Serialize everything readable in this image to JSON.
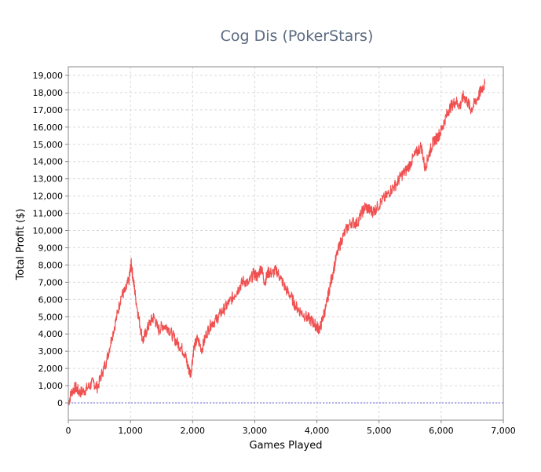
{
  "chart_data": {
    "type": "line",
    "title": "Cog Dis (PokerStars)",
    "xlabel": "Games Played",
    "ylabel": "Total Profit ($)",
    "xlim": [
      0,
      7000
    ],
    "ylim": [
      -1000,
      19500
    ],
    "x_ticks": [
      0,
      1000,
      2000,
      3000,
      4000,
      5000,
      6000,
      7000
    ],
    "x_tick_labels": [
      "0",
      "1,000",
      "2,000",
      "3,000",
      "4,000",
      "5,000",
      "6,000",
      "7,000"
    ],
    "y_ticks": [
      0,
      1000,
      2000,
      3000,
      4000,
      5000,
      6000,
      7000,
      8000,
      9000,
      10000,
      11000,
      12000,
      13000,
      14000,
      15000,
      16000,
      17000,
      18000,
      19000
    ],
    "y_tick_labels": [
      "0",
      "1,000",
      "2,000",
      "3,000",
      "4,000",
      "5,000",
      "6,000",
      "7,000",
      "8,000",
      "9,000",
      "10,000",
      "11,000",
      "12,000",
      "13,000",
      "14,000",
      "15,000",
      "16,000",
      "17,000",
      "18,000",
      "19,000"
    ],
    "grid": true,
    "legend": "none",
    "zero_line": true,
    "series": [
      {
        "color": "#f05050",
        "x": [
          0,
          60,
          120,
          180,
          250,
          320,
          400,
          470,
          550,
          620,
          700,
          780,
          850,
          920,
          980,
          1010,
          1040,
          1080,
          1140,
          1200,
          1260,
          1320,
          1380,
          1450,
          1520,
          1600,
          1680,
          1750,
          1820,
          1880,
          1930,
          1970,
          2020,
          2080,
          2150,
          2220,
          2300,
          2380,
          2450,
          2520,
          2600,
          2680,
          2750,
          2820,
          2900,
          2980,
          3050,
          3100,
          3160,
          3220,
          3280,
          3350,
          3420,
          3500,
          3580,
          3660,
          3740,
          3820,
          3900,
          3960,
          4000,
          4050,
          4100,
          4150,
          4200,
          4260,
          4330,
          4400,
          4480,
          4560,
          4640,
          4720,
          4780,
          4840,
          4900,
          4960,
          5040,
          5120,
          5200,
          5280,
          5360,
          5440,
          5520,
          5600,
          5680,
          5740,
          5800,
          5840,
          5880,
          5940,
          6000,
          6060,
          6120,
          6180,
          6240,
          6300,
          6360,
          6420,
          6480,
          6540,
          6600,
          6650,
          6700
        ],
        "values": [
          0,
          700,
          900,
          600,
          700,
          900,
          1200,
          900,
          1800,
          2500,
          3800,
          5000,
          6200,
          6500,
          7200,
          8100,
          7300,
          6200,
          4800,
          3600,
          4200,
          4700,
          5000,
          4200,
          4500,
          4400,
          3900,
          3500,
          3200,
          2800,
          2000,
          1700,
          3200,
          3700,
          3100,
          4000,
          4600,
          4800,
          5200,
          5500,
          5900,
          6300,
          6700,
          7100,
          6900,
          7500,
          7300,
          7900,
          7000,
          7600,
          7500,
          7700,
          7200,
          6600,
          6200,
          5600,
          5300,
          5000,
          4800,
          4600,
          4400,
          4300,
          5000,
          5600,
          6600,
          7600,
          8700,
          9500,
          10100,
          10500,
          10400,
          11000,
          11400,
          11200,
          11100,
          11300,
          11700,
          12000,
          12400,
          12700,
          13200,
          13500,
          14000,
          14500,
          14900,
          13600,
          14400,
          14800,
          15200,
          15400,
          15800,
          16400,
          17000,
          17300,
          17500,
          17200,
          17800,
          17500,
          17000,
          17400,
          17800,
          18200,
          18500
        ]
      }
    ]
  }
}
